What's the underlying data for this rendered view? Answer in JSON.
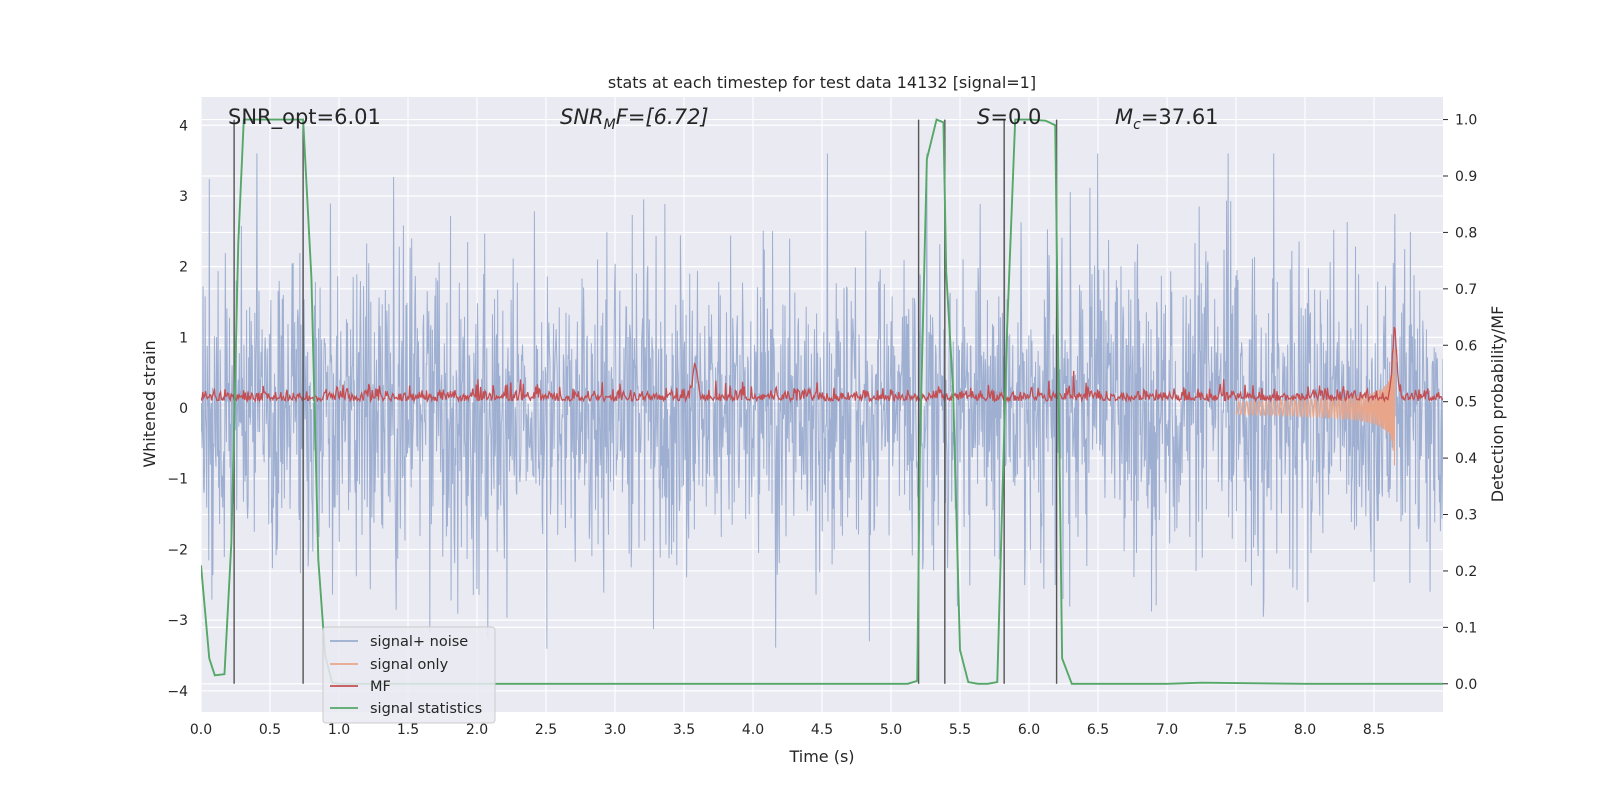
{
  "chart_data": {
    "type": "line",
    "title": "stats at each timestep for test data 14132 [signal=1]",
    "xlabel": "Time (s)",
    "ylabel_left": "Whitened strain",
    "ylabel_right": "Detection probability/MF",
    "xlim": [
      0.0,
      9.0
    ],
    "ylim_left": [
      -4.3,
      4.4
    ],
    "ylim_right": [
      -0.05,
      1.04
    ],
    "xticks": [
      "0.0",
      "0.5",
      "1.0",
      "1.5",
      "2.0",
      "2.5",
      "3.0",
      "3.5",
      "4.0",
      "4.5",
      "5.0",
      "5.5",
      "6.0",
      "6.5",
      "7.0",
      "7.5",
      "8.0",
      "8.5"
    ],
    "yticks_left": [
      "−4",
      "−3",
      "−2",
      "−1",
      "0",
      "1",
      "2",
      "3",
      "4"
    ],
    "yticks_right": [
      "0.0",
      "0.1",
      "0.2",
      "0.3",
      "0.4",
      "0.5",
      "0.6",
      "0.7",
      "0.8",
      "0.9",
      "1.0"
    ],
    "grid": true,
    "annotations": {
      "snr_opt": "SNR_opt=6.01",
      "snr_mf_base": "SNR",
      "snr_mf_sub": "M",
      "snr_mf_rest": "F=[6.72]",
      "s_base": "S",
      "s_rest": "=0.0",
      "mc_base": "M",
      "mc_sub": "c",
      "mc_rest": "=37.61"
    },
    "legend": {
      "placement": "lower-left",
      "entries": [
        {
          "label": "signal+ noise",
          "color": "#9aaccf"
        },
        {
          "label": "signal only",
          "color": "#e8a58a"
        },
        {
          "label": "MF",
          "color": "#c44e52"
        },
        {
          "label": "signal statistics",
          "color": "#55a868"
        }
      ]
    },
    "vertical_markers_s": [
      0.24,
      0.74,
      5.2,
      5.39,
      5.82,
      6.2
    ],
    "series": [
      {
        "name": "signal statistics",
        "axis": "right",
        "color": "#55a868",
        "x": [
          0.0,
          0.06,
          0.1,
          0.17,
          0.22,
          0.27,
          0.31,
          0.35,
          0.45,
          0.6,
          0.7,
          0.74,
          0.8,
          0.85,
          0.9,
          0.95,
          1.0,
          1.5,
          2.0,
          3.0,
          4.0,
          5.0,
          5.12,
          5.19,
          5.21,
          5.26,
          5.33,
          5.38,
          5.4,
          5.45,
          5.5,
          5.56,
          5.63,
          5.7,
          5.77,
          5.84,
          5.9,
          6.0,
          6.12,
          6.19,
          6.24,
          6.31,
          7.0,
          7.25,
          8.0,
          9.0
        ],
        "values": [
          0.21,
          0.045,
          0.015,
          0.017,
          0.25,
          0.78,
          1.0,
          1.0,
          1.0,
          1.0,
          1.0,
          1.0,
          0.72,
          0.22,
          0.05,
          0.002,
          0.0,
          0.0,
          0.0,
          0.0,
          0.0,
          0.0,
          0.0,
          0.005,
          0.42,
          0.93,
          1.0,
          0.995,
          0.73,
          0.52,
          0.06,
          0.003,
          0.0,
          0.0,
          0.003,
          0.62,
          1.0,
          1.0,
          0.998,
          0.99,
          0.045,
          0.0,
          0.0,
          0.002,
          0.0,
          0.0
        ]
      },
      {
        "name": "signal+ noise",
        "axis": "left",
        "color": "#9aaccf",
        "x_range": [
          0.0,
          9.0
        ],
        "sample_rate_hz": 2048,
        "envelope_typical": [
          -1.9,
          2.0
        ],
        "peak_range": [
          -3.7,
          3.6
        ]
      },
      {
        "name": "MF",
        "axis": "left",
        "color": "#c44e52",
        "x_range": [
          0.0,
          9.0
        ],
        "baseline": 0.1,
        "band": [
          0.0,
          0.4
        ],
        "bumps": [
          {
            "x": 3.58,
            "value": 0.7
          },
          {
            "x": 8.65,
            "value": 1.05
          }
        ]
      },
      {
        "name": "signal only",
        "axis": "left",
        "color": "#e8a58a",
        "chirp_start_s": 7.5,
        "merger_s": 8.65,
        "peak_amplitude": 1.4
      }
    ]
  }
}
